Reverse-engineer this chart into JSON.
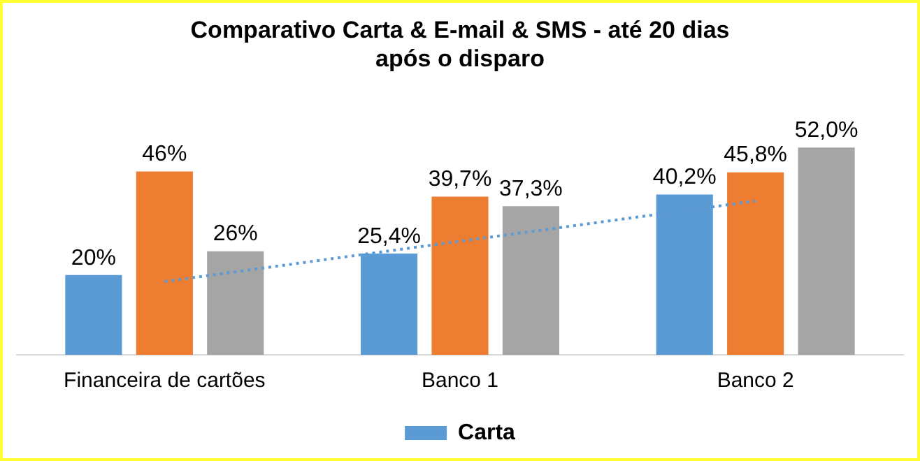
{
  "chart_data": {
    "type": "bar",
    "title": "Comparativo Carta & E-mail & SMS - até 20 dias\napós o disparo",
    "categories": [
      "Financeira de cartões",
      "Banco 1",
      "Banco 2"
    ],
    "series": [
      {
        "name": "Carta",
        "color": "#5b9bd5",
        "values": [
          20,
          25.4,
          40.2
        ],
        "value_labels": [
          "20%",
          "25,4%",
          "40,2%"
        ]
      },
      {
        "color": "#ed7d31",
        "values": [
          46,
          39.7,
          45.8
        ],
        "value_labels": [
          "46%",
          "39,7%",
          "45,8%"
        ]
      },
      {
        "color": "#a5a5a5",
        "values": [
          26,
          37.3,
          52
        ],
        "value_labels": [
          "26%",
          "37,3%",
          "52,0%"
        ]
      },
      {
        "type": "line",
        "color": "#5b9bd5",
        "values": [
          18.4,
          28.5,
          38.6
        ],
        "line_style": "dotted"
      }
    ],
    "legend": "bottom",
    "grid": false,
    "tick_labels": "x"
  }
}
